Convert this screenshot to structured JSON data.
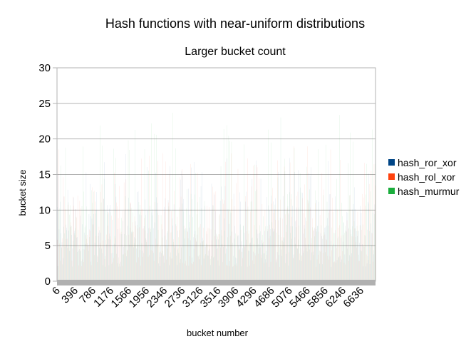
{
  "chart_data": {
    "type": "bar",
    "title": "Hash functions with near-uniform distributions",
    "subtitle": "Larger bucket count",
    "xlabel": "bucket number",
    "ylabel": "bucket size",
    "ylim": [
      0,
      30
    ],
    "yticks": [
      0,
      5,
      10,
      15,
      20,
      25,
      30
    ],
    "xticks": [
      "6",
      "396",
      "786",
      "1176",
      "1566",
      "1956",
      "2346",
      "2736",
      "3126",
      "3516",
      "3906",
      "4296",
      "4686",
      "5076",
      "5466",
      "5856",
      "6246",
      "6636"
    ],
    "x_range": [
      6,
      6960
    ],
    "grid": true,
    "legend_position": "right",
    "series": [
      {
        "name": "hash_ror_xor",
        "color": "#004586",
        "typical": 5,
        "max_peak": 18
      },
      {
        "name": "hash_rol_xor",
        "color": "#ff420e",
        "typical": 5,
        "max_peak": 19
      },
      {
        "name": "hash_murmur",
        "color": "#1aad3c",
        "typical": 5,
        "max_peak": 24
      }
    ]
  }
}
